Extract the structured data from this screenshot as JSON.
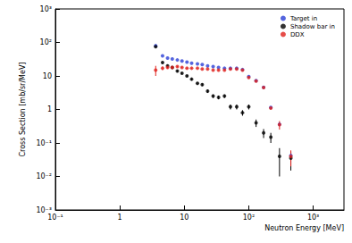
{
  "chart_data": {
    "type": "scatter",
    "x_label": "Neutron Energy [MeV]",
    "y_label": "Cross Section [mb/sr/MeV]",
    "log": true,
    "grid": false,
    "legend": "top-right",
    "xlim": [
      0.1,
      3000
    ],
    "ylim": [
      0.001,
      1000
    ],
    "xticks": [
      {
        "value": 0.1,
        "label": "10⁻¹"
      },
      1,
      10,
      {
        "value": 100,
        "label": "10²"
      },
      {
        "value": 1000,
        "label": "10³"
      }
    ],
    "yticks": [
      {
        "value": 0.001,
        "label": "10⁻³"
      },
      {
        "value": 0.01,
        "label": "10⁻²"
      },
      {
        "value": 0.1,
        "label": "10⁻¹"
      },
      1,
      10,
      {
        "value": 100,
        "label": "10²"
      },
      {
        "value": 1000,
        "label": "10³"
      }
    ],
    "x": [
      3.6,
      4.6,
      5.5,
      6.5,
      7.8,
      9.2,
      11,
      13,
      16,
      19,
      23,
      28,
      34,
      42,
      52,
      65,
      80,
      100,
      130,
      170,
      220,
      300,
      450
    ],
    "series": [
      {
        "name": "Target in",
        "color": "#2b3fd6",
        "marker": "circle",
        "values": [
          80,
          40,
          34,
          32,
          30,
          28,
          26,
          24,
          23,
          22,
          20,
          19,
          18,
          17,
          17,
          17,
          15.5,
          9.5,
          7.2,
          4.6,
          1.15,
          0.36,
          0.042
        ]
      },
      {
        "name": "Shadow bar in",
        "color": "#000000",
        "marker": "circle",
        "values": [
          75,
          25,
          20,
          18,
          14,
          12,
          10,
          8,
          6,
          5.5,
          3.5,
          2.5,
          2.3,
          2.5,
          1.2,
          1.2,
          0.8,
          1.2,
          0.4,
          0.2,
          0.15,
          0.04,
          0.035
        ],
        "errors": [
          5,
          2,
          1.5,
          1.2,
          1,
          0.8,
          0.7,
          0.6,
          0.5,
          0.5,
          0.4,
          0.3,
          0.3,
          0.3,
          0.2,
          0.2,
          0.15,
          0.2,
          0.1,
          0.06,
          0.05,
          0.03,
          0.02
        ]
      },
      {
        "name": "DDX",
        "color": "#e0201b",
        "marker": "circle",
        "values": [
          15,
          17,
          18,
          18,
          19,
          18,
          17,
          17,
          17,
          16,
          16,
          15,
          15,
          15,
          16,
          16,
          15,
          9,
          7,
          4.5,
          1.1,
          0.35,
          0.04
        ],
        "errors": [
          5,
          2,
          1.5,
          1.2,
          1,
          0.8,
          0.7,
          0.6,
          0.5,
          0.5,
          0.4,
          0.4,
          0.4,
          0.4,
          0.4,
          0.4,
          0.4,
          0.3,
          0.2,
          0.15,
          0.08,
          0.1,
          0.02
        ]
      }
    ]
  }
}
